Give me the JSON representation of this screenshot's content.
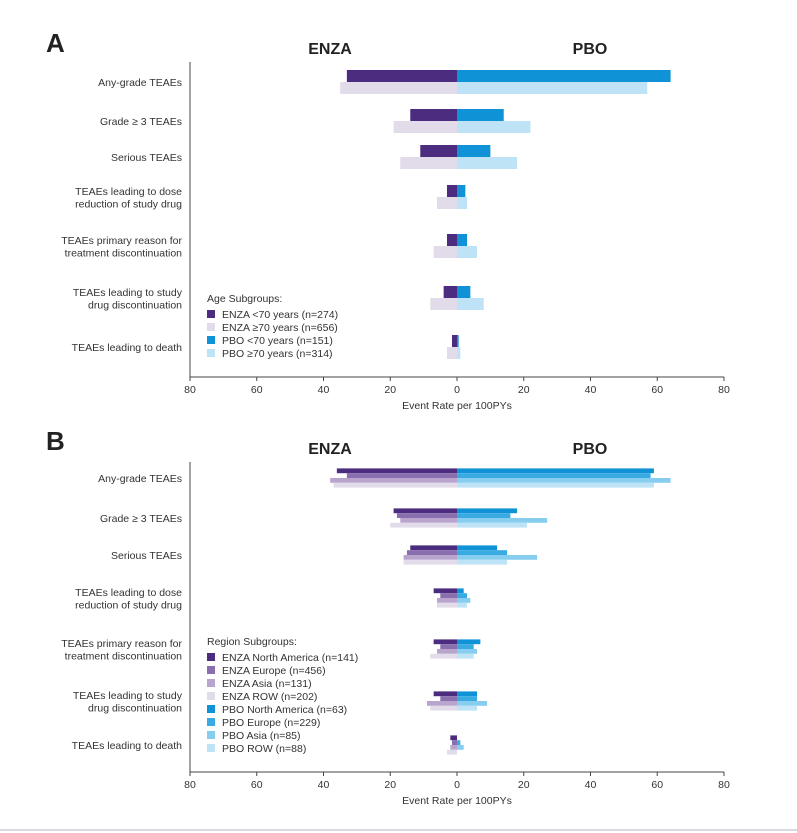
{
  "colors": {
    "enza_dark": "#4b2c7f",
    "enza_mid": "#8a6fae",
    "enza_mid2": "#b8a4cc",
    "enza_light": "#e2dcea",
    "pbo_dark": "#0f92d6",
    "pbo_mid": "#3aaae2",
    "pbo_mid2": "#86cdef",
    "pbo_light": "#bfe3f6"
  },
  "chart_data": [
    {
      "panel": "A",
      "type": "bar",
      "orientation": "horizontal-butterfly",
      "left_header": "ENZA",
      "right_header": "PBO",
      "xlabel": "Event Rate per 100PYs",
      "xlim": [
        -80,
        80
      ],
      "xticks": [
        "80",
        "60",
        "40",
        "20",
        "0",
        "20",
        "40",
        "60",
        "80"
      ],
      "legend_title": "Age Subgroups:",
      "categories": [
        "Any-grade TEAEs",
        "Grade ≥ 3 TEAEs",
        "Serious TEAEs",
        "TEAEs leading to dose\nreduction of study drug",
        "TEAEs primary reason for\ntreatment discontinuation",
        "TEAEs leading to study\ndrug discontinuation",
        "TEAEs leading to death"
      ],
      "series": [
        {
          "name": "ENZA <70 years (n=274)",
          "side": "ENZA",
          "color": "#4b2c7f",
          "values": [
            33,
            14,
            11,
            3,
            3,
            4,
            1.5
          ]
        },
        {
          "name": "ENZA ≥70 years (n=656)",
          "side": "ENZA",
          "color": "#e2dcea",
          "values": [
            35,
            19,
            17,
            6,
            7,
            8,
            3
          ]
        },
        {
          "name": "PBO <70 years (n=151)",
          "side": "PBO",
          "color": "#0f92d6",
          "values": [
            64,
            14,
            10,
            2.5,
            3,
            4,
            0.5
          ]
        },
        {
          "name": "PBO ≥70 years (n=314)",
          "side": "PBO",
          "color": "#bfe3f6",
          "values": [
            57,
            22,
            18,
            3,
            6,
            8,
            1
          ]
        }
      ]
    },
    {
      "panel": "B",
      "type": "bar",
      "orientation": "horizontal-butterfly",
      "left_header": "ENZA",
      "right_header": "PBO",
      "xlabel": "Event Rate per 100PYs",
      "xlim": [
        -80,
        80
      ],
      "xticks": [
        "80",
        "60",
        "40",
        "20",
        "0",
        "20",
        "40",
        "60",
        "80"
      ],
      "legend_title": "Region Subgroups:",
      "categories": [
        "Any-grade TEAEs",
        "Grade ≥ 3 TEAEs",
        "Serious TEAEs",
        "TEAEs leading to dose\nreduction of study drug",
        "TEAEs primary reason for\ntreatment discontinuation",
        "TEAEs leading to study\ndrug discontinuation",
        "TEAEs leading to death"
      ],
      "series": [
        {
          "name": "ENZA North America (n=141)",
          "side": "ENZA",
          "color": "#4b2c7f",
          "values": [
            36,
            19,
            14,
            7,
            7,
            7,
            2
          ]
        },
        {
          "name": "ENZA Europe (n=456)",
          "side": "ENZA",
          "color": "#8a6fae",
          "values": [
            33,
            18,
            15,
            5,
            5,
            5,
            1.5
          ]
        },
        {
          "name": "ENZA Asia (n=131)",
          "side": "ENZA",
          "color": "#b8a4cc",
          "values": [
            38,
            17,
            16,
            6,
            6,
            9,
            2
          ]
        },
        {
          "name": "ENZA ROW (n=202)",
          "side": "ENZA",
          "color": "#e2dcea",
          "values": [
            37,
            20,
            16,
            6,
            8,
            8,
            3
          ]
        },
        {
          "name": "PBO North America (n=63)",
          "side": "PBO",
          "color": "#0f92d6",
          "values": [
            59,
            18,
            12,
            2,
            7,
            6,
            0
          ]
        },
        {
          "name": "PBO Europe (n=229)",
          "side": "PBO",
          "color": "#3aaae2",
          "values": [
            58,
            16,
            15,
            3,
            5,
            6,
            1
          ]
        },
        {
          "name": "PBO Asia (n=85)",
          "side": "PBO",
          "color": "#86cdef",
          "values": [
            64,
            27,
            24,
            4,
            6,
            9,
            2
          ]
        },
        {
          "name": "PBO ROW (n=88)",
          "side": "PBO",
          "color": "#bfe3f6",
          "values": [
            59,
            21,
            15,
            3,
            5,
            6,
            0
          ]
        }
      ]
    }
  ]
}
